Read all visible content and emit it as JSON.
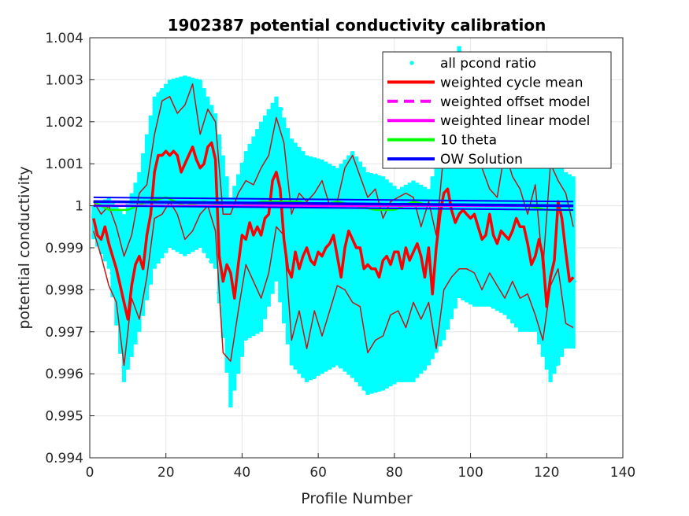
{
  "chart_data": {
    "type": "scatter",
    "title": "1902387 potential conductivity calibration",
    "xlabel": "Profile Number",
    "ylabel": "potential conductivity",
    "xlim": [
      0,
      140
    ],
    "ylim": [
      0.994,
      1.004
    ],
    "xticks": [
      0,
      20,
      40,
      60,
      80,
      100,
      120,
      140
    ],
    "yticks": [
      0.994,
      0.995,
      0.996,
      0.997,
      0.998,
      0.999,
      1.0,
      1.001,
      1.002,
      1.003,
      1.004
    ],
    "xtick_labels": [
      "0",
      "20",
      "40",
      "60",
      "80",
      "100",
      "120",
      "140"
    ],
    "ytick_labels": [
      "0.994",
      "0.995",
      "0.996",
      "0.997",
      "0.998",
      "0.999",
      "1",
      "1.001",
      "1.002",
      "1.003",
      "1.004"
    ],
    "grid": true,
    "legend_position": "top-right",
    "colors": {
      "pcond": "#00ffff",
      "cycle_mean": "#ff0000",
      "cycle_band": "#cc1111",
      "offset_model": "#ff00ff",
      "linear_model": "#ff00ff",
      "theta": "#00ff00",
      "ow": "#0000ff"
    },
    "legend": [
      {
        "label": "all pcond ratio",
        "style": "dot",
        "color": "#00ffff"
      },
      {
        "label": "weighted cycle mean",
        "style": "line",
        "color": "#ff0000"
      },
      {
        "label": "weighted offset model",
        "style": "dash",
        "color": "#ff00ff"
      },
      {
        "label": "weighted linear model",
        "style": "line",
        "color": "#ff00ff"
      },
      {
        "label": "10 theta",
        "style": "line",
        "color": "#00ff00"
      },
      {
        "label": "OW Solution",
        "style": "line",
        "color": "#0000ff"
      }
    ],
    "series": [
      {
        "name": "weighted cycle mean",
        "x": [
          1,
          2,
          3,
          4,
          5,
          6,
          7,
          8,
          9,
          10,
          11,
          12,
          13,
          14,
          15,
          16,
          17,
          18,
          19,
          20,
          21,
          22,
          23,
          24,
          25,
          26,
          27,
          28,
          29,
          30,
          31,
          32,
          33,
          34,
          35,
          36,
          37,
          38,
          39,
          40,
          41,
          42,
          43,
          44,
          45,
          46,
          47,
          48,
          49,
          50,
          51,
          52,
          53,
          54,
          55,
          56,
          57,
          58,
          59,
          60,
          61,
          62,
          63,
          64,
          65,
          66,
          67,
          68,
          69,
          70,
          71,
          72,
          73,
          74,
          75,
          76,
          77,
          78,
          79,
          80,
          81,
          82,
          83,
          84,
          85,
          86,
          87,
          88,
          89,
          90,
          91,
          92,
          93,
          94,
          95,
          96,
          97,
          98,
          99,
          100,
          101,
          102,
          103,
          104,
          105,
          106,
          107,
          108,
          109,
          110,
          111,
          112,
          113,
          114,
          115,
          116,
          117,
          118,
          119,
          120,
          121,
          122,
          123,
          124,
          125,
          126,
          127
        ],
        "values": [
          0.9997,
          0.9993,
          0.9992,
          0.9995,
          0.9991,
          0.9988,
          0.9985,
          0.9981,
          0.9977,
          0.9973,
          0.9981,
          0.9986,
          0.9988,
          0.9985,
          0.9993,
          0.9998,
          1.0008,
          1.0012,
          1.0012,
          1.0013,
          1.0012,
          1.0013,
          1.0012,
          1.0008,
          1.001,
          1.0012,
          1.0014,
          1.0011,
          1.0009,
          1.001,
          1.0014,
          1.0015,
          1.0011,
          0.9988,
          0.9982,
          0.9986,
          0.9984,
          0.9978,
          0.9986,
          0.9993,
          0.9992,
          0.9996,
          0.9993,
          0.9995,
          0.9993,
          0.9997,
          0.9998,
          1.0006,
          1.0008,
          1.0004,
          0.9992,
          0.9985,
          0.9983,
          0.9989,
          0.9985,
          0.9988,
          0.999,
          0.9987,
          0.9986,
          0.9989,
          0.9988,
          0.999,
          0.9991,
          0.9993,
          0.9988,
          0.9983,
          0.999,
          0.9994,
          0.9992,
          0.999,
          0.999,
          0.9985,
          0.9986,
          0.9985,
          0.9985,
          0.9983,
          0.9987,
          0.9988,
          0.9986,
          0.9989,
          0.9989,
          0.9985,
          0.999,
          0.9987,
          0.9989,
          0.9991,
          0.9988,
          0.9983,
          0.999,
          0.9979,
          0.999,
          0.9998,
          1.0003,
          1.0004,
          0.9999,
          0.9996,
          0.9998,
          0.9999,
          0.9998,
          0.9997,
          0.9998,
          0.9995,
          0.9992,
          0.9993,
          0.9998,
          0.9993,
          0.9991,
          0.9994,
          0.9993,
          0.9992,
          0.9994,
          0.9997,
          0.9995,
          0.9995,
          0.9991,
          0.9986,
          0.9988,
          0.9992,
          0.9988,
          0.9976,
          0.9983,
          0.9987,
          1.0001,
          0.9997,
          0.9989,
          0.9982,
          0.9983
        ]
      },
      {
        "name": "cycle mean upper band",
        "x": [
          1,
          3,
          5,
          7,
          9,
          11,
          13,
          15,
          17,
          19,
          21,
          23,
          25,
          27,
          29,
          31,
          33,
          35,
          37,
          39,
          41,
          43,
          45,
          47,
          49,
          51,
          53,
          55,
          57,
          59,
          61,
          63,
          65,
          67,
          69,
          71,
          73,
          75,
          77,
          79,
          81,
          83,
          85,
          87,
          89,
          91,
          93,
          95,
          97,
          99,
          101,
          103,
          105,
          107,
          109,
          111,
          113,
          115,
          117,
          119,
          121,
          123,
          125,
          127
        ],
        "values": [
          1.0001,
          0.9998,
          1.0,
          0.9995,
          0.9988,
          0.9993,
          1.0003,
          1.0005,
          1.0017,
          1.0025,
          1.0026,
          1.0022,
          1.0024,
          1.0029,
          1.0017,
          1.0023,
          1.002,
          0.9998,
          0.9998,
          1.0003,
          1.0006,
          1.0005,
          1.0009,
          1.0012,
          1.0021,
          1.0015,
          0.9998,
          1.0003,
          1.0001,
          1.0003,
          1.0006,
          1.0,
          1.0001,
          1.0009,
          1.0012,
          1.0007,
          1.0002,
          1.0004,
          0.9997,
          1.0001,
          1.0002,
          1.0003,
          1.0002,
          0.9995,
          1.0001,
          0.9993,
          1.0013,
          1.0018,
          1.0012,
          1.0011,
          1.0018,
          1.0009,
          1.0004,
          1.0002,
          1.0013,
          1.0007,
          1.0004,
          0.9998,
          1.0005,
          0.9985,
          1.001,
          1.0006,
          1.0003,
          0.9995
        ]
      },
      {
        "name": "cycle mean lower band",
        "x": [
          1,
          3,
          5,
          7,
          9,
          11,
          13,
          15,
          17,
          19,
          21,
          23,
          25,
          27,
          29,
          31,
          33,
          35,
          37,
          39,
          41,
          43,
          45,
          47,
          49,
          51,
          53,
          55,
          57,
          59,
          61,
          63,
          65,
          67,
          69,
          71,
          73,
          75,
          77,
          79,
          81,
          83,
          85,
          87,
          89,
          91,
          93,
          95,
          97,
          99,
          101,
          103,
          105,
          107,
          109,
          111,
          113,
          115,
          117,
          119,
          121,
          123,
          125,
          127
        ],
        "values": [
          0.9994,
          0.9988,
          0.9981,
          0.9977,
          0.9962,
          0.9978,
          0.9973,
          0.9983,
          0.9997,
          0.9998,
          1.0001,
          0.9998,
          0.9992,
          0.9994,
          0.9998,
          1.0,
          0.9994,
          0.9965,
          0.9963,
          0.9975,
          0.9986,
          0.9982,
          0.9978,
          0.9984,
          0.9995,
          0.9993,
          0.9968,
          0.9975,
          0.9966,
          0.9975,
          0.9969,
          0.9975,
          0.9981,
          0.998,
          0.9977,
          0.9976,
          0.9965,
          0.9968,
          0.9969,
          0.9974,
          0.9975,
          0.9971,
          0.9977,
          0.9973,
          0.9977,
          0.9966,
          0.998,
          0.9983,
          0.9985,
          0.9985,
          0.9984,
          0.998,
          0.9984,
          0.9981,
          0.9978,
          0.9982,
          0.9978,
          0.9979,
          0.9974,
          0.9968,
          0.9981,
          0.9985,
          0.9972,
          0.9971
        ]
      },
      {
        "name": "10 theta",
        "x": [
          1,
          5,
          10,
          15,
          20,
          25,
          30,
          35,
          40,
          45,
          50,
          55,
          60,
          65,
          70,
          75,
          80,
          85,
          90,
          95,
          100,
          105,
          110,
          115,
          120,
          125,
          127
        ],
        "values": [
          1.0001,
          0.9999,
          0.9999,
          1.0001,
          1.0002,
          1.0,
          1.0001,
          1.0,
          1.0,
          1.0001,
          1.0001,
          1.0001,
          1.0,
          1.0001,
          1.0,
          0.9999,
          0.9999,
          1.0001,
          1.0,
          1.0,
          1.0,
          1.0,
          1.0,
          1.0,
          0.9999,
          0.9999,
          0.9999
        ]
      },
      {
        "name": "weighted offset model",
        "x": [
          1,
          127
        ],
        "values": [
          1.0001,
          1.0
        ]
      },
      {
        "name": "weighted linear model",
        "x": [
          1,
          127
        ],
        "values": [
          1.0,
          1.0
        ]
      },
      {
        "name": "OW Solution",
        "x": [
          1,
          127
        ],
        "values": [
          1.0001,
          1.0
        ]
      }
    ],
    "scatter_envelope": {
      "name": "all pcond ratio",
      "x": [
        1,
        5,
        9,
        13,
        17,
        21,
        25,
        29,
        33,
        37,
        41,
        45,
        49,
        53,
        57,
        61,
        65,
        69,
        73,
        77,
        81,
        85,
        89,
        93,
        97,
        101,
        105,
        109,
        113,
        117,
        121,
        125,
        127
      ],
      "upper": [
        1.0,
        1.0002,
        0.9998,
        1.0008,
        1.0026,
        1.003,
        1.0031,
        1.003,
        1.0022,
        1.0002,
        1.0013,
        1.002,
        1.0026,
        1.0016,
        1.0012,
        1.0011,
        1.0009,
        1.0013,
        1.0008,
        1.0007,
        1.0004,
        1.0006,
        1.0004,
        1.0016,
        1.0038,
        1.0024,
        1.0014,
        1.0013,
        1.0017,
        1.0013,
        1.0024,
        1.0008,
        1.0007
      ],
      "lower": [
        0.9992,
        0.9985,
        0.9958,
        0.997,
        0.9985,
        0.999,
        0.9988,
        0.999,
        0.9985,
        0.9952,
        0.9968,
        0.997,
        0.9982,
        0.9962,
        0.9958,
        0.996,
        0.9962,
        0.9959,
        0.9955,
        0.9956,
        0.9958,
        0.9958,
        0.9962,
        0.9968,
        0.9978,
        0.9976,
        0.9976,
        0.9974,
        0.997,
        0.997,
        0.9958,
        0.9966,
        0.9966
      ]
    }
  }
}
